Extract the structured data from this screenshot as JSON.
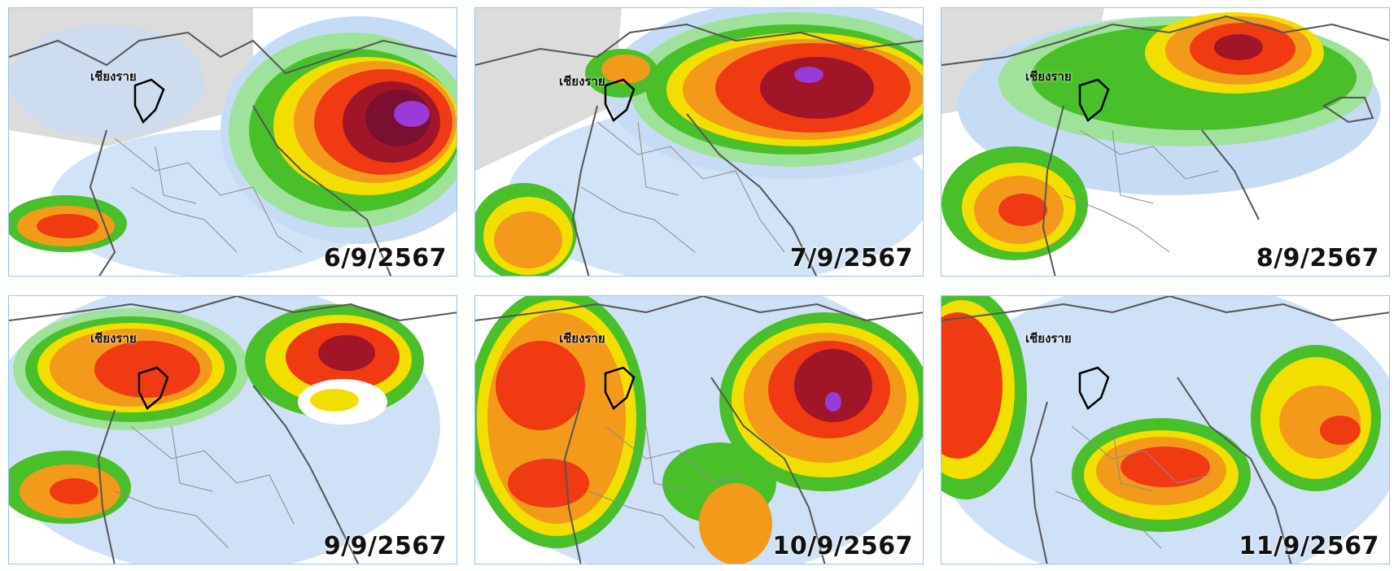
{
  "place_label": "เชียงราย",
  "panels": [
    {
      "date": "6/9/2567"
    },
    {
      "date": "7/9/2567"
    },
    {
      "date": "8/9/2567"
    },
    {
      "date": "9/9/2567"
    },
    {
      "date": "10/9/2567"
    },
    {
      "date": "11/9/2567"
    }
  ],
  "colors": {
    "land_gray": "#dcdcdc",
    "light_blue": "#c6dcf5",
    "green": "#49c02a",
    "light_green": "#9fe29a",
    "yellow": "#f2df00",
    "orange": "#f39a1a",
    "red": "#f03a12",
    "dark_red": "#a01628",
    "maroon": "#7a1030",
    "purple": "#9a3ad8",
    "border": "#555555",
    "district": "#8a8a8a"
  }
}
